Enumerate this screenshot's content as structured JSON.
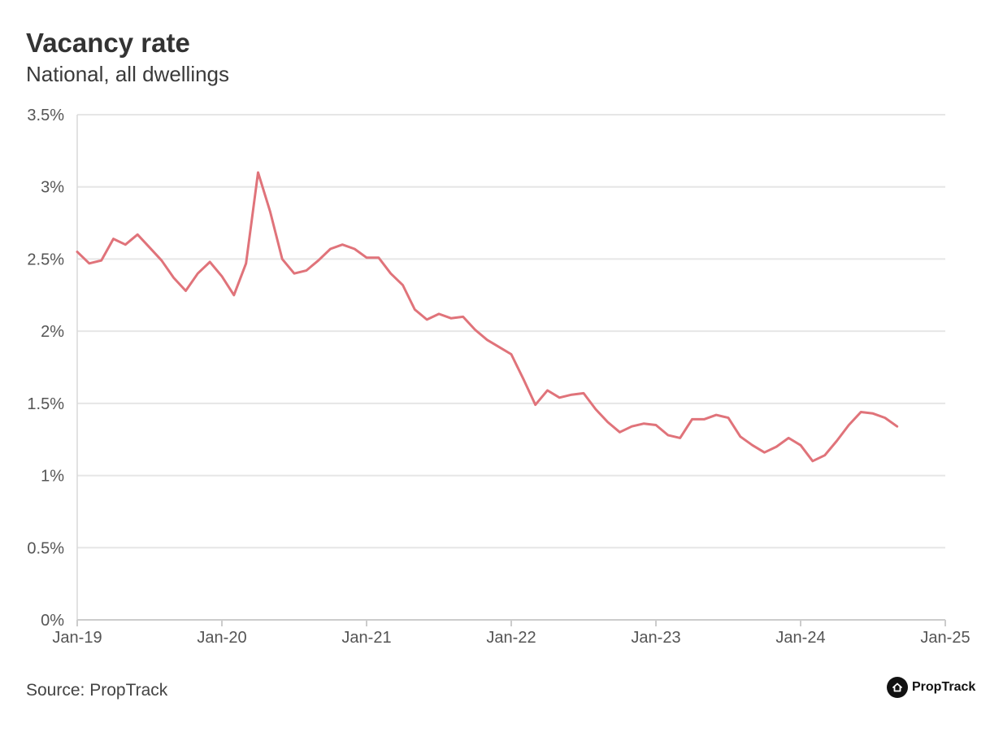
{
  "header": {
    "title": "Vacancy rate",
    "subtitle": "National, all dwellings"
  },
  "footer": {
    "source": "Source: PropTrack",
    "brand": "PropTrack"
  },
  "colors": {
    "line": "#e0737a",
    "grid": "#e6e6e6",
    "text": "#333333"
  },
  "chart_data": {
    "type": "line",
    "title": "",
    "xlabel": "",
    "ylabel": "",
    "ylim": [
      0,
      3.5
    ],
    "y_ticks": [
      0,
      0.5,
      1,
      1.5,
      2,
      2.5,
      3,
      3.5
    ],
    "y_tick_labels": [
      "0%",
      "0.5%",
      "1%",
      "1.5%",
      "2%",
      "2.5%",
      "3%",
      "3.5%"
    ],
    "x_tick_labels": [
      "Jan-19",
      "Jan-20",
      "Jan-21",
      "Jan-22",
      "Jan-23",
      "Jan-24",
      "Jan-25"
    ],
    "x_start": "Jan-19",
    "x_end": "Jan-25",
    "grid": true,
    "series": [
      {
        "values": [
          {
            "x": "2019-01",
            "y": 2.55
          },
          {
            "x": "2019-02",
            "y": 2.47
          },
          {
            "x": "2019-03",
            "y": 2.49
          },
          {
            "x": "2019-04",
            "y": 2.64
          },
          {
            "x": "2019-05",
            "y": 2.6
          },
          {
            "x": "2019-06",
            "y": 2.67
          },
          {
            "x": "2019-07",
            "y": 2.58
          },
          {
            "x": "2019-08",
            "y": 2.49
          },
          {
            "x": "2019-09",
            "y": 2.37
          },
          {
            "x": "2019-10",
            "y": 2.28
          },
          {
            "x": "2019-11",
            "y": 2.4
          },
          {
            "x": "2019-12",
            "y": 2.48
          },
          {
            "x": "2020-01",
            "y": 2.38
          },
          {
            "x": "2020-02",
            "y": 2.25
          },
          {
            "x": "2020-03",
            "y": 2.47
          },
          {
            "x": "2020-04",
            "y": 3.1
          },
          {
            "x": "2020-05",
            "y": 2.83
          },
          {
            "x": "2020-06",
            "y": 2.5
          },
          {
            "x": "2020-07",
            "y": 2.4
          },
          {
            "x": "2020-08",
            "y": 2.42
          },
          {
            "x": "2020-09",
            "y": 2.49
          },
          {
            "x": "2020-10",
            "y": 2.57
          },
          {
            "x": "2020-11",
            "y": 2.6
          },
          {
            "x": "2020-12",
            "y": 2.57
          },
          {
            "x": "2021-01",
            "y": 2.51
          },
          {
            "x": "2021-02",
            "y": 2.51
          },
          {
            "x": "2021-03",
            "y": 2.4
          },
          {
            "x": "2021-04",
            "y": 2.32
          },
          {
            "x": "2021-05",
            "y": 2.15
          },
          {
            "x": "2021-06",
            "y": 2.08
          },
          {
            "x": "2021-07",
            "y": 2.12
          },
          {
            "x": "2021-08",
            "y": 2.09
          },
          {
            "x": "2021-09",
            "y": 2.1
          },
          {
            "x": "2021-10",
            "y": 2.01
          },
          {
            "x": "2021-11",
            "y": 1.94
          },
          {
            "x": "2021-12",
            "y": 1.89
          },
          {
            "x": "2022-01",
            "y": 1.84
          },
          {
            "x": "2022-02",
            "y": 1.67
          },
          {
            "x": "2022-03",
            "y": 1.49
          },
          {
            "x": "2022-04",
            "y": 1.59
          },
          {
            "x": "2022-05",
            "y": 1.54
          },
          {
            "x": "2022-06",
            "y": 1.56
          },
          {
            "x": "2022-07",
            "y": 1.57
          },
          {
            "x": "2022-08",
            "y": 1.46
          },
          {
            "x": "2022-09",
            "y": 1.37
          },
          {
            "x": "2022-10",
            "y": 1.3
          },
          {
            "x": "2022-11",
            "y": 1.34
          },
          {
            "x": "2022-12",
            "y": 1.36
          },
          {
            "x": "2023-01",
            "y": 1.35
          },
          {
            "x": "2023-02",
            "y": 1.28
          },
          {
            "x": "2023-03",
            "y": 1.26
          },
          {
            "x": "2023-04",
            "y": 1.39
          },
          {
            "x": "2023-05",
            "y": 1.39
          },
          {
            "x": "2023-06",
            "y": 1.42
          },
          {
            "x": "2023-07",
            "y": 1.4
          },
          {
            "x": "2023-08",
            "y": 1.27
          },
          {
            "x": "2023-09",
            "y": 1.21
          },
          {
            "x": "2023-10",
            "y": 1.16
          },
          {
            "x": "2023-11",
            "y": 1.2
          },
          {
            "x": "2023-12",
            "y": 1.26
          },
          {
            "x": "2024-01",
            "y": 1.21
          },
          {
            "x": "2024-02",
            "y": 1.1
          },
          {
            "x": "2024-03",
            "y": 1.14
          },
          {
            "x": "2024-04",
            "y": 1.24
          },
          {
            "x": "2024-05",
            "y": 1.35
          },
          {
            "x": "2024-06",
            "y": 1.44
          },
          {
            "x": "2024-07",
            "y": 1.43
          },
          {
            "x": "2024-08",
            "y": 1.4
          },
          {
            "x": "2024-09",
            "y": 1.34
          }
        ]
      }
    ]
  }
}
